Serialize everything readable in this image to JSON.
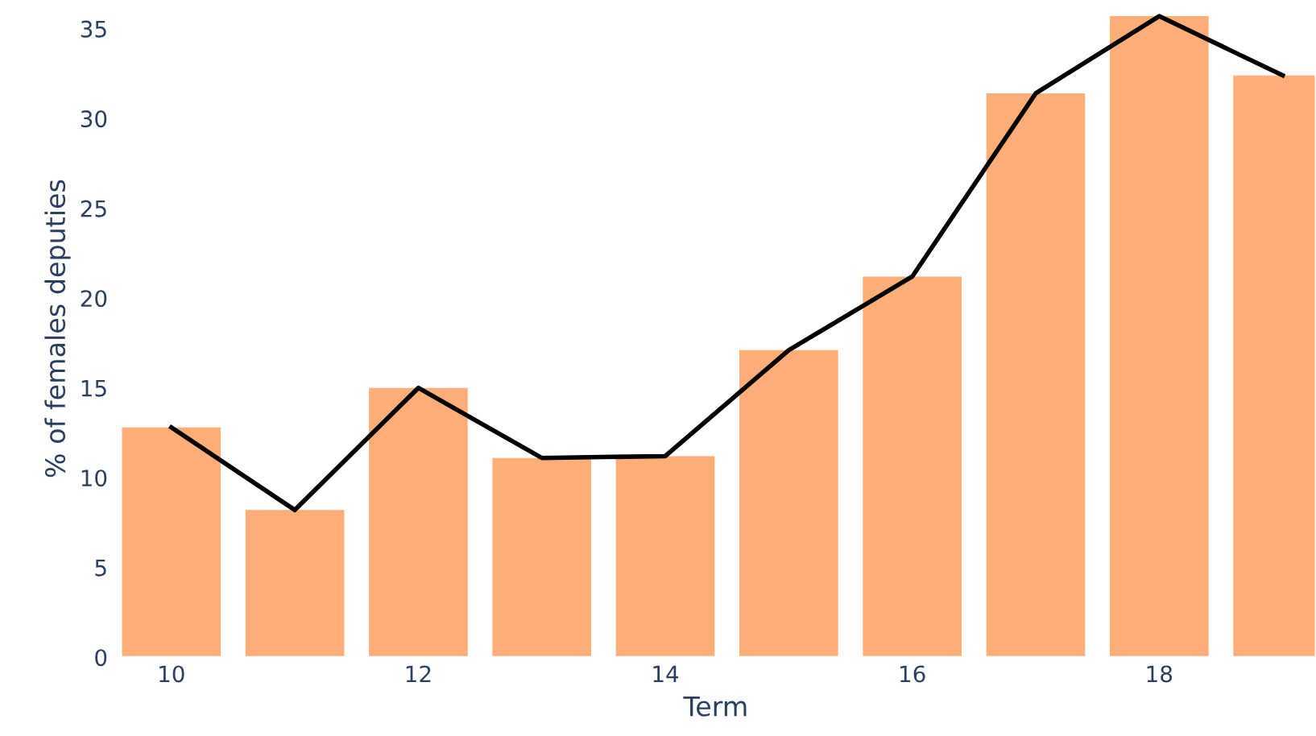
{
  "chart_data": {
    "type": "bar",
    "xlabel": "Term",
    "ylabel": "% of females deputies",
    "x": [
      10,
      11,
      12,
      13,
      14,
      15,
      16,
      17,
      18,
      19
    ],
    "series": [
      {
        "color": "#ffae78",
        "values": [
          12.8,
          8.2,
          15.0,
          11.1,
          11.2,
          17.1,
          21.2,
          31.4,
          35.7,
          32.4
        ]
      },
      {
        "type": "line",
        "color": "#000000",
        "values": [
          12.8,
          8.2,
          15.0,
          11.1,
          11.2,
          17.1,
          21.2,
          31.4,
          35.7,
          32.4
        ]
      }
    ],
    "xlim": [
      9.55,
      19.27
    ],
    "xticks": [
      10,
      12,
      14,
      16,
      18
    ],
    "ylim": [
      0,
      36.6
    ],
    "yticks": [
      0,
      5,
      10,
      15,
      20,
      25,
      30,
      35
    ],
    "grid": false,
    "legend": false,
    "marker": "none",
    "line_style": "solid"
  }
}
